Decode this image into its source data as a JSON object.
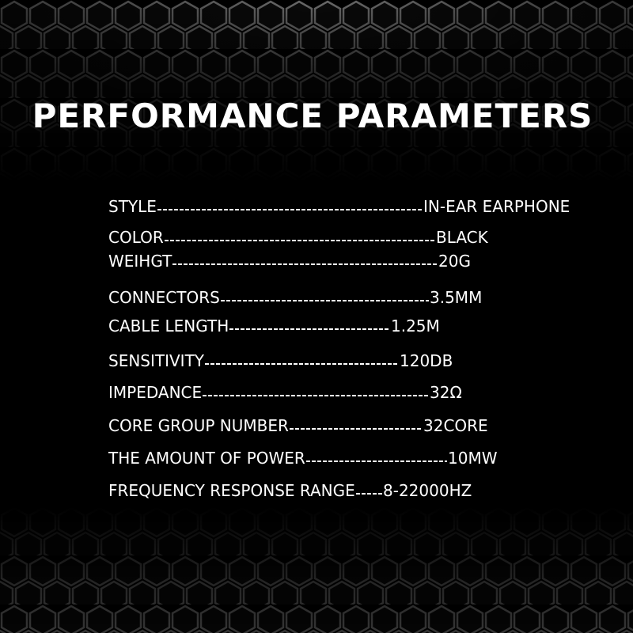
{
  "title": "PERFORMANCE PARAMETERS",
  "params": [
    {
      "label": "STYLE",
      "value": "IN-EAR EARPHONE"
    },
    {
      "label": "COLOR",
      "value": "BLACK"
    },
    {
      "label": "WEIHGT",
      "value": "20G"
    },
    {
      "label": "CONNECTORS",
      "value": "3.5MM"
    },
    {
      "label": "CABLE LENGTH",
      "value": "1.25M"
    },
    {
      "label": "SENSITIVITY",
      "value": "120DB"
    },
    {
      "label": "IMPEDANCE",
      "value": "32Ω"
    },
    {
      "label": "CORE GROUP NUMBER",
      "value": "32CORE"
    },
    {
      "label": "THE AMOUNT OF POWER",
      "value": "10MW"
    },
    {
      "label": "FREQUENCY RESPONSE RANGE",
      "value": "8-22000HZ"
    }
  ],
  "colors": {
    "background": "#000000",
    "text": "#ffffff",
    "hex_pattern": "#5a5a5a"
  }
}
